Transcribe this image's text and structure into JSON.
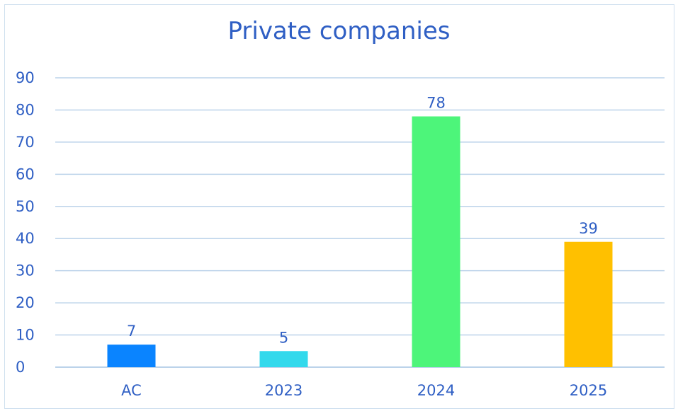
{
  "chart_data": {
    "type": "bar",
    "title": "Private companies",
    "categories": [
      "AC",
      "2023",
      "2024",
      "2025"
    ],
    "values": [
      7,
      5,
      78,
      39
    ],
    "bar_colors": [
      "#0a84ff",
      "#33d9ec",
      "#4df57a",
      "#ffc000"
    ],
    "data_labels": [
      "7",
      "5",
      "78",
      "39"
    ],
    "ylim": [
      0,
      90
    ],
    "yticks": [
      0,
      10,
      20,
      30,
      40,
      50,
      60,
      70,
      80,
      90
    ],
    "grid": true,
    "legend": "none",
    "xlabel": "",
    "ylabel": ""
  },
  "colors": {
    "text": "#2f5fc4",
    "grid": "#bcd3ea",
    "frame": "#cfe0ef"
  }
}
